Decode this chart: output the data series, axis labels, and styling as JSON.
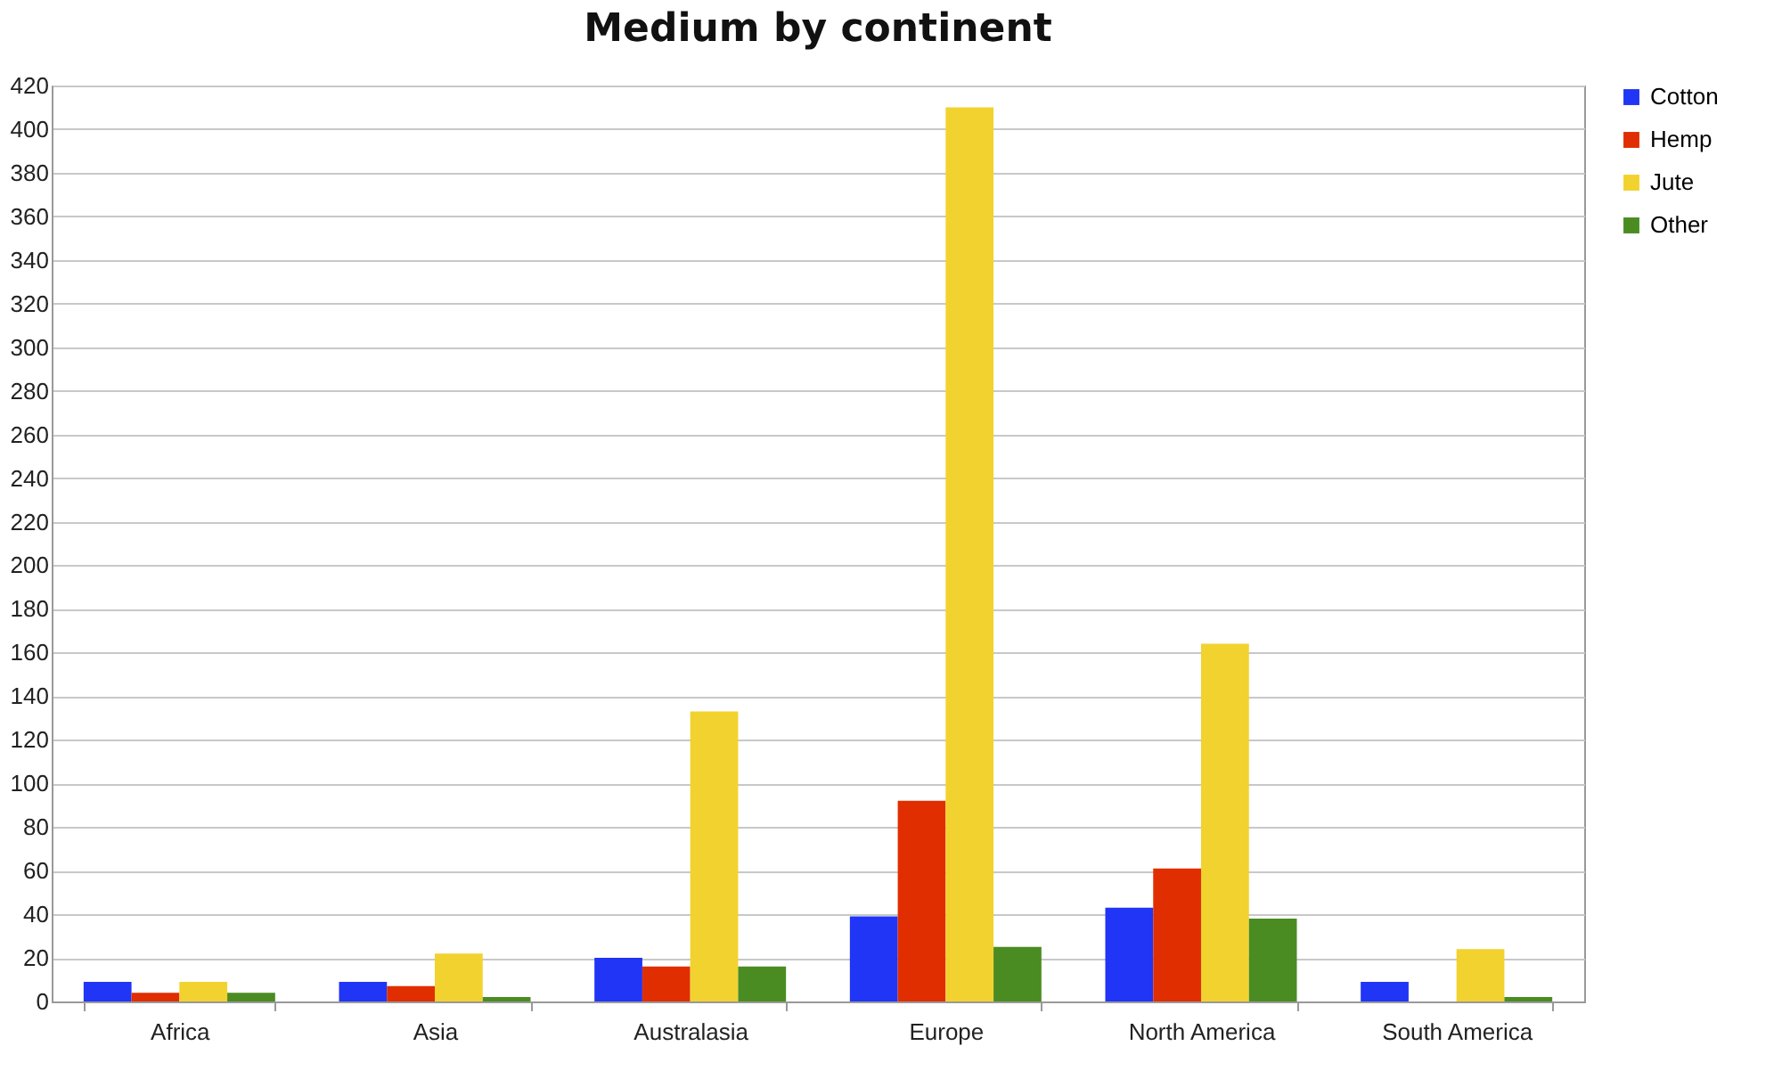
{
  "chart_data": {
    "type": "bar",
    "title": "Medium by continent",
    "categories": [
      "Africa",
      "Asia",
      "Australasia",
      "Europe",
      "North America",
      "South America"
    ],
    "series": [
      {
        "name": "Cotton",
        "color": "#2035f5",
        "values": [
          9,
          9,
          20,
          39,
          43,
          9
        ]
      },
      {
        "name": "Hemp",
        "color": "#e02e00",
        "values": [
          4,
          7,
          16,
          92,
          61,
          0
        ]
      },
      {
        "name": "Jute",
        "color": "#f2d22e",
        "values": [
          9,
          22,
          133,
          410,
          164,
          24
        ]
      },
      {
        "name": "Other",
        "color": "#4a8c22",
        "values": [
          4,
          2,
          16,
          25,
          38,
          2
        ]
      }
    ],
    "ylim": [
      0,
      420
    ],
    "yticks": [
      0,
      20,
      40,
      60,
      80,
      100,
      120,
      140,
      160,
      180,
      200,
      220,
      240,
      260,
      280,
      300,
      320,
      340,
      360,
      380,
      400,
      420
    ],
    "grid": "y",
    "legend": "right"
  }
}
